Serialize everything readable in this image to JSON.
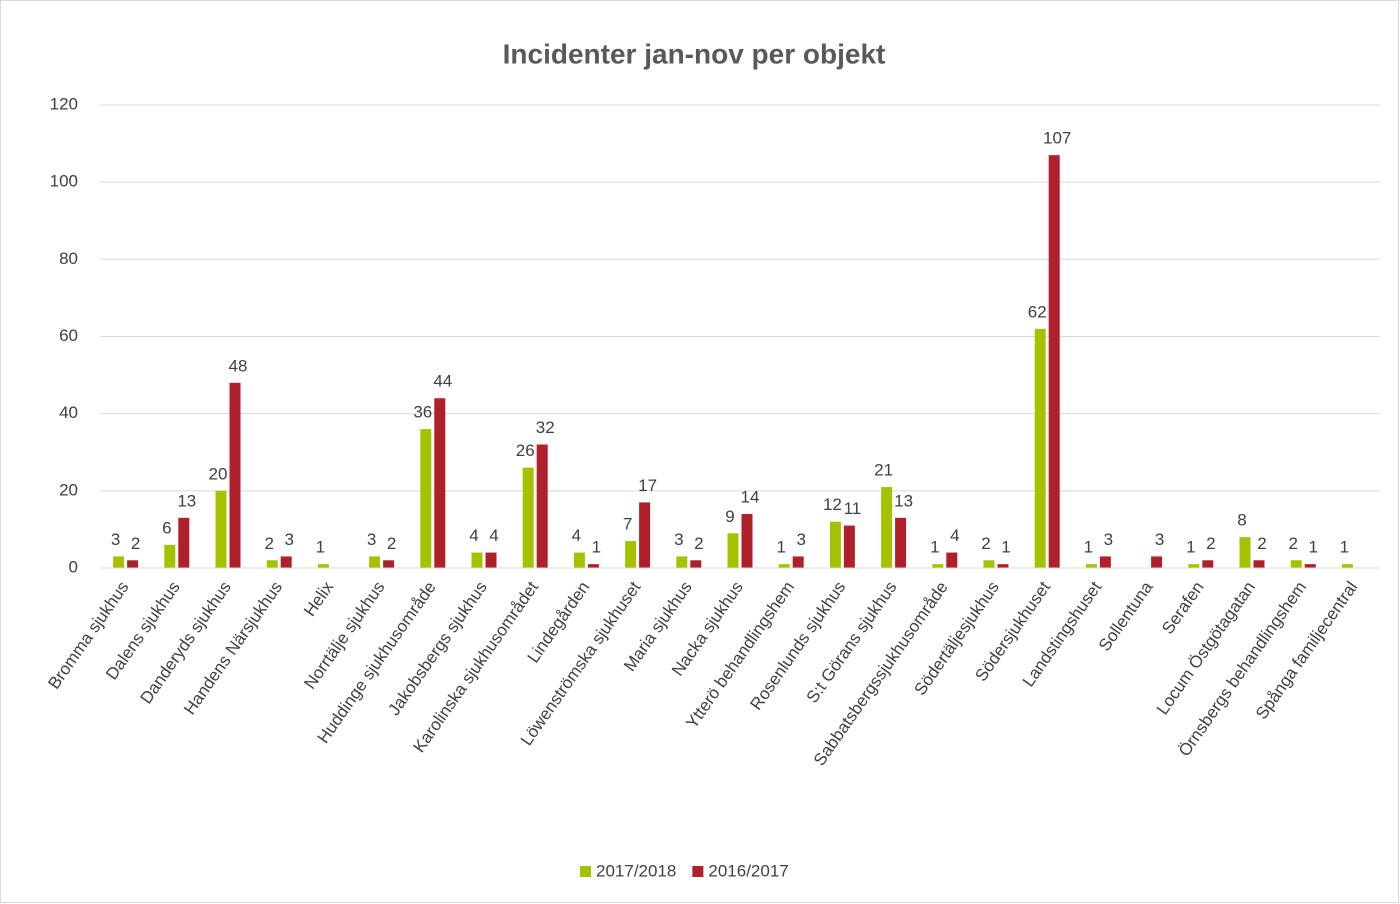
{
  "chart_data": {
    "type": "bar",
    "title": "Incidenter jan-nov per objekt",
    "categories": [
      "Bromma sjukhus",
      "Dalens sjukhus",
      "Danderyds sjukhus",
      "Handens Närsjukhus",
      "Helix",
      "Norrtälje sjukhus",
      "Huddinge sjukhusområde",
      "Jakobsbergs sjukhus",
      "Karolinska sjukhusområdet",
      "Lindegården",
      "Löwenströmska sjukhuset",
      "Maria sjukhus",
      "Nacka sjukhus",
      "Ytterö behandlingshem",
      "Rosenlunds sjukhus",
      "S:t Görans sjukhus",
      "Sabbatsbergssjukhusområde",
      "Södertäljesjukhus",
      "Södersjukhuset",
      "Landstingshuset",
      "Sollentuna",
      "Serafen",
      "Locum Östgötagatan",
      "Örnsbergs behandlingshem",
      "Spånga familjecentral"
    ],
    "series": [
      {
        "name": "2017/2018",
        "color": "#a5c100",
        "values": [
          3,
          6,
          20,
          2,
          1,
          3,
          36,
          4,
          26,
          4,
          7,
          3,
          9,
          1,
          12,
          21,
          1,
          2,
          62,
          1,
          null,
          1,
          8,
          2,
          1
        ]
      },
      {
        "name": "2016/2017",
        "color": "#b0202a",
        "values": [
          2,
          13,
          48,
          3,
          null,
          2,
          44,
          4,
          32,
          1,
          17,
          2,
          14,
          3,
          11,
          13,
          4,
          1,
          107,
          3,
          3,
          2,
          2,
          1,
          null
        ]
      }
    ],
    "ylim": [
      0,
      120
    ],
    "yticks": [
      0,
      20,
      40,
      60,
      80,
      100,
      120
    ],
    "grid": true,
    "legend": "bottom"
  }
}
